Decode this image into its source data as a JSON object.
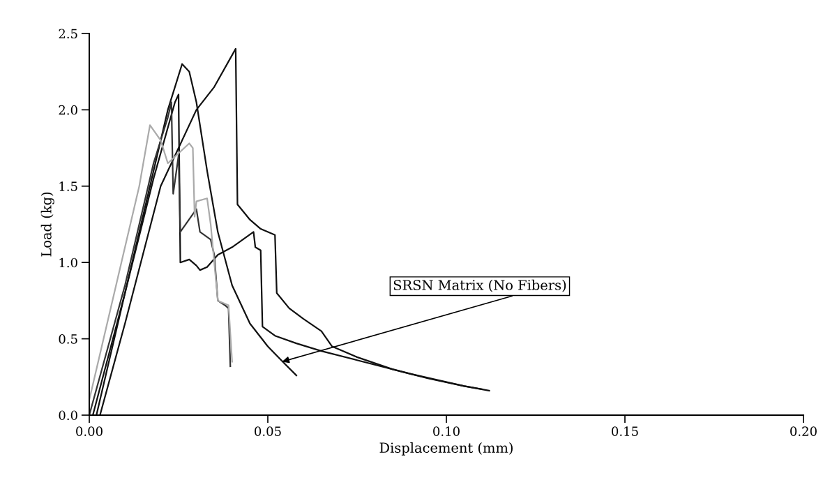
{
  "chart_data": {
    "type": "line",
    "xlabel": "Displacement (mm)",
    "ylabel": "Load (kg)",
    "xlim": [
      0,
      0.2
    ],
    "ylim": [
      0,
      2.5
    ],
    "xticks": [
      {
        "value": 0,
        "label": "0.00"
      },
      {
        "value": 0.05,
        "label": "0.05"
      },
      {
        "value": 0.1,
        "label": "0.10"
      },
      {
        "value": 0.15,
        "label": "0.15"
      },
      {
        "value": 0.2,
        "label": "0.20"
      }
    ],
    "yticks": [
      {
        "value": 0,
        "label": "0.0"
      },
      {
        "value": 0.5,
        "label": "0.5"
      },
      {
        "value": 1,
        "label": "1.0"
      },
      {
        "value": 1.5,
        "label": "1.5"
      },
      {
        "value": 2,
        "label": "2.0"
      },
      {
        "value": 2.5,
        "label": "2.5"
      }
    ],
    "grid": false,
    "legend": false,
    "marker": "none",
    "line_style": "solid",
    "series": [
      {
        "color": "#111111",
        "x": [
          0.002,
          0.01,
          0.018,
          0.022,
          0.026,
          0.028,
          0.03,
          0.033,
          0.036,
          0.04,
          0.045,
          0.05,
          0.055,
          0.058
        ],
        "values": [
          0,
          0.8,
          1.6,
          2.0,
          2.3,
          2.25,
          2.05,
          1.6,
          1.2,
          0.85,
          0.6,
          0.45,
          0.33,
          0.26
        ]
      },
      {
        "color": "#111111",
        "x": [
          0.003,
          0.01,
          0.02,
          0.03,
          0.035,
          0.041,
          0.0415,
          0.045,
          0.048,
          0.052,
          0.0525,
          0.056,
          0.06,
          0.065,
          0.068,
          0.075,
          0.085,
          0.095,
          0.105,
          0.112
        ],
        "values": [
          0,
          0.6,
          1.5,
          2.0,
          2.15,
          2.4,
          1.38,
          1.28,
          1.22,
          1.18,
          0.8,
          0.7,
          0.63,
          0.55,
          0.45,
          0.38,
          0.3,
          0.24,
          0.19,
          0.16
        ]
      },
      {
        "color": "#111111",
        "x": [
          0.001,
          0.01,
          0.018,
          0.024,
          0.025,
          0.0255,
          0.028,
          0.03,
          0.031,
          0.033,
          0.036,
          0.04,
          0.046,
          0.0465,
          0.048,
          0.0485,
          0.052,
          0.058,
          0.065,
          0.075,
          0.09,
          0.105,
          0.11
        ],
        "values": [
          0,
          0.8,
          1.55,
          2.05,
          2.1,
          1.0,
          1.02,
          0.98,
          0.95,
          0.97,
          1.05,
          1.1,
          1.2,
          1.1,
          1.08,
          0.58,
          0.52,
          0.47,
          0.42,
          0.36,
          0.27,
          0.19,
          0.17
        ]
      },
      {
        "color": "#333333",
        "x": [
          0.0,
          0.01,
          0.018,
          0.022,
          0.023,
          0.0235,
          0.025,
          0.0255,
          0.03,
          0.031,
          0.034,
          0.035,
          0.0355,
          0.036,
          0.038,
          0.039,
          0.0395
        ],
        "values": [
          0,
          0.85,
          1.65,
          1.95,
          2.05,
          1.45,
          1.7,
          1.2,
          1.35,
          1.2,
          1.15,
          1.05,
          0.9,
          0.75,
          0.72,
          0.7,
          0.32
        ]
      },
      {
        "color": "#aaaaaa",
        "x": [
          0.0,
          0.008,
          0.014,
          0.017,
          0.02,
          0.022,
          0.028,
          0.029,
          0.0295,
          0.03,
          0.033,
          0.034,
          0.035,
          0.036,
          0.039,
          0.04
        ],
        "values": [
          0.1,
          0.9,
          1.5,
          1.9,
          1.8,
          1.65,
          1.78,
          1.75,
          1.3,
          1.4,
          1.42,
          1.25,
          1.0,
          0.75,
          0.72,
          0.35
        ]
      }
    ],
    "annotations": [
      {
        "text": "SRSN Matrix (No Fibers)",
        "x": 0.054,
        "y": 0.35
      }
    ]
  }
}
